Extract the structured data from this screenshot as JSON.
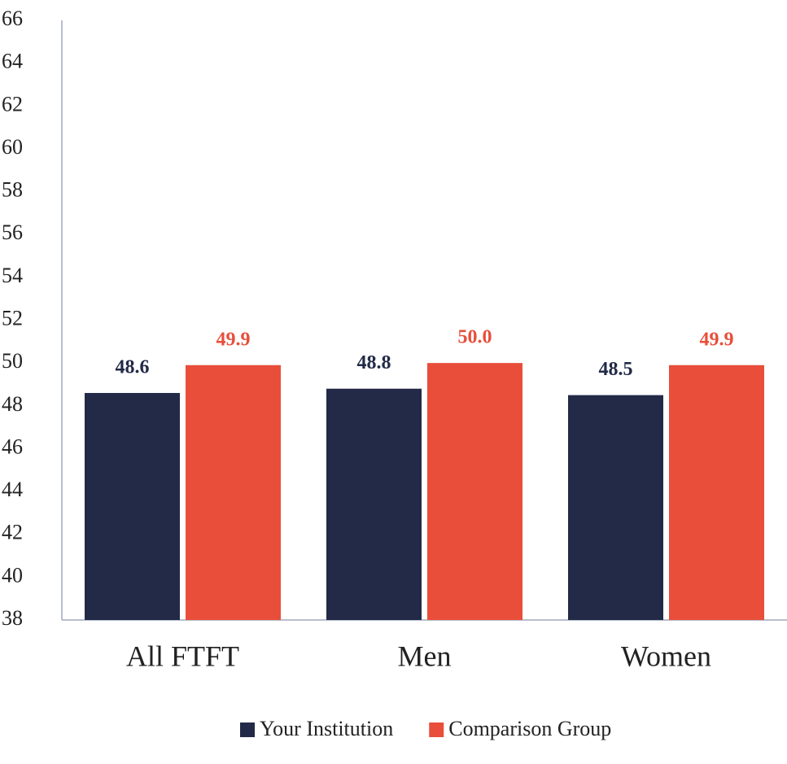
{
  "chart_data": {
    "type": "bar",
    "categories": [
      "All FTFT",
      "Men",
      "Women"
    ],
    "series": [
      {
        "name": "Your Institution",
        "color": "#222a47",
        "values": [
          48.6,
          48.8,
          48.5
        ],
        "value_labels": [
          "48.6",
          "48.8",
          "48.5"
        ]
      },
      {
        "name": "Comparison Group",
        "color": "#e84e3a",
        "values": [
          49.9,
          50.0,
          49.9
        ],
        "value_labels": [
          "49.9",
          "50.0",
          "49.9"
        ]
      }
    ],
    "ylim": [
      38,
      66
    ],
    "yticks": [
      38,
      40,
      42,
      44,
      46,
      48,
      50,
      52,
      54,
      56,
      58,
      60,
      62,
      64,
      66
    ],
    "grid": false,
    "legend": "bottom"
  }
}
